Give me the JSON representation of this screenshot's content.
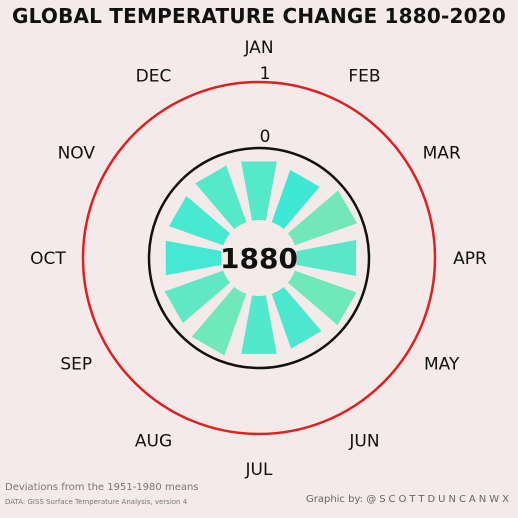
{
  "chart_data": {
    "type": "radial-bar",
    "title": "GLOBAL TEMPERATURE CHANGE 1880-2020",
    "year": "1880",
    "months": [
      "JAN",
      "FEB",
      "MAR",
      "APR",
      "MAY",
      "JUN",
      "JUL",
      "AUG",
      "SEP",
      "OCT",
      "NOV",
      "DEC"
    ],
    "ring_labels": [
      {
        "value": 0,
        "label": "0"
      },
      {
        "value": 1,
        "label": "1"
      }
    ],
    "r_axis_range": [
      -1,
      1
    ],
    "monthly_anomalies_c": [
      -0.18,
      -0.25,
      -0.09,
      -0.17,
      -0.1,
      -0.21,
      -0.19,
      -0.1,
      -0.15,
      -0.23,
      -0.22,
      -0.18
    ],
    "colors": {
      "zero_ring": "#111111",
      "one_ring": "#e02020",
      "bar_cold": "#2ee8e0",
      "bar_warm": "#7fe8b0",
      "inner_fill": "#f4eaea"
    }
  },
  "footer": {
    "note": "Deviations from the 1951-1980 means",
    "source": "DATA: GISS Surface Temperature Analysis, version 4",
    "credit_prefix": "Graphic by: ",
    "credit_handle": "@SCOTTDUNCANWX"
  }
}
